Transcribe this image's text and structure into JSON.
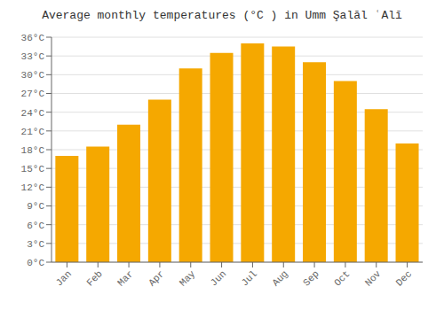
{
  "chart_data": {
    "type": "bar",
    "title": "Average monthly temperatures (°C ) in Umm Şalāl ʿAlī",
    "categories": [
      "Jan",
      "Feb",
      "Mar",
      "Apr",
      "May",
      "Jun",
      "Jul",
      "Aug",
      "Sep",
      "Oct",
      "Nov",
      "Dec"
    ],
    "values": [
      17.0,
      18.5,
      22.0,
      26.0,
      31.0,
      33.5,
      35.0,
      34.5,
      32.0,
      29.0,
      24.5,
      19.0
    ],
    "color": "#F5A800",
    "ylim": [
      0,
      36
    ],
    "yticks": [
      {
        "value": 0,
        "label": "0°C"
      },
      {
        "value": 3,
        "label": "3°C"
      },
      {
        "value": 6,
        "label": "6°C"
      },
      {
        "value": 9,
        "label": "9°C"
      },
      {
        "value": 12,
        "label": "12°C"
      },
      {
        "value": 15,
        "label": "15°C"
      },
      {
        "value": 18,
        "label": "18°C"
      },
      {
        "value": 21,
        "label": "21°C"
      },
      {
        "value": 24,
        "label": "24°C"
      },
      {
        "value": 27,
        "label": "27°C"
      },
      {
        "value": 30,
        "label": "30°C"
      },
      {
        "value": 33,
        "label": "33°C"
      },
      {
        "value": 36,
        "label": "36°C"
      }
    ],
    "grid": true
  }
}
